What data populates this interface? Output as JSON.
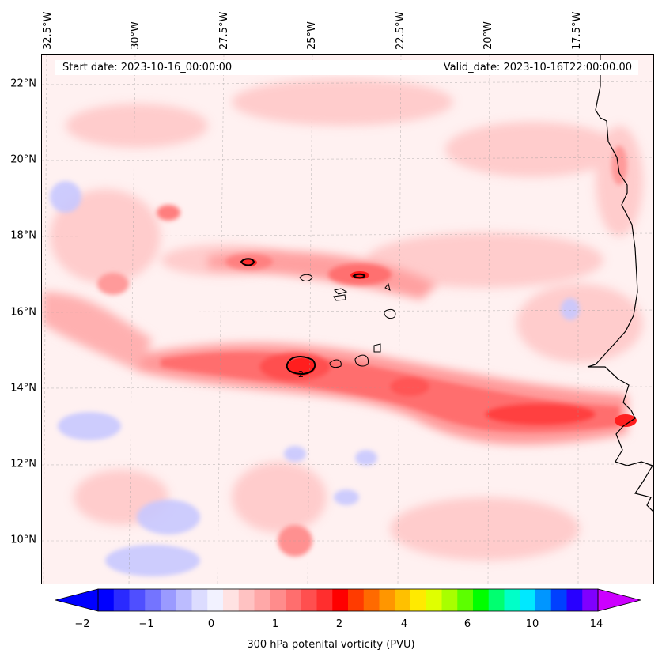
{
  "map": {
    "start_date": "Start date: 2023-10-16_00:00:00",
    "valid_date": "Valid_date: 2023-10-16T22:00:00.00",
    "lon_labels": [
      "32.5°W",
      "30°W",
      "27.5°W",
      "25°W",
      "22.5°W",
      "20°W",
      "17.5°W"
    ],
    "lat_labels": [
      "22°N",
      "20°N",
      "18°N",
      "16°N",
      "14°N",
      "12°N",
      "10°N"
    ],
    "contour_label": "2"
  },
  "colorbar": {
    "label": "300 hPa potenital vorticity (PVU)",
    "ticks": [
      "−2",
      "−1",
      "0",
      "1",
      "2",
      "4",
      "6",
      "10",
      "14"
    ],
    "colors": [
      "#0000ff",
      "#2a2aff",
      "#4f4fff",
      "#7474ff",
      "#9a9aff",
      "#bcbcff",
      "#dcdcff",
      "#f2f2ff",
      "#ffe2e2",
      "#ffc2c2",
      "#ffa8a8",
      "#ff8c8c",
      "#ff6e6e",
      "#ff4f4f",
      "#ff2e2e",
      "#ff0000",
      "#ff3b00",
      "#ff6a00",
      "#ff9600",
      "#ffc000",
      "#ffea00",
      "#e0ff00",
      "#a8ff00",
      "#5cff00",
      "#00ff00",
      "#00ff70",
      "#00ffc8",
      "#00e8ff",
      "#0096ff",
      "#0040ff",
      "#2800ff",
      "#8000ff"
    ],
    "under_color": "#0000ff",
    "over_color": "#cc00ff"
  }
}
